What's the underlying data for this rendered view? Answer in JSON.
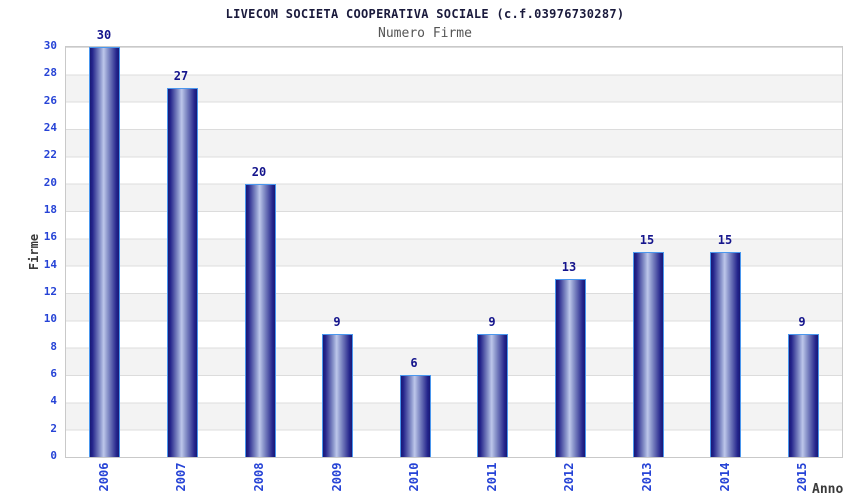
{
  "chart_data": {
    "type": "bar",
    "title": "LIVECOM SOCIETA COOPERATIVA SOCIALE (c.f.03976730287)",
    "subtitle": "Numero Firme",
    "categories": [
      "2006",
      "2007",
      "2008",
      "2009",
      "2010",
      "2011",
      "2012",
      "2013",
      "2014",
      "2015"
    ],
    "values": [
      30,
      27,
      20,
      9,
      6,
      9,
      13,
      15,
      15,
      9
    ],
    "xlabel": "Anno",
    "ylabel": "Firme",
    "ylim": [
      0,
      30
    ],
    "ytick_step": 2,
    "grid": true,
    "legend_position": "none",
    "bar_value_labels_shown": true,
    "colors": {
      "title": "#1a1a3c",
      "subtitle": "#555555",
      "axis_title": "#3a3a3a",
      "tick_label": "#2643d6",
      "value_label": "#14148c",
      "bar_border": "#4a97ee",
      "bar_dark": "#191975",
      "bar_light": "#bdc7ea",
      "band_gray": "#f3f3f3",
      "band_white": "#ffffff",
      "grid_line": "#dcdcdc",
      "plot_border": "#c9c9c9",
      "background": "#ffffff"
    }
  }
}
